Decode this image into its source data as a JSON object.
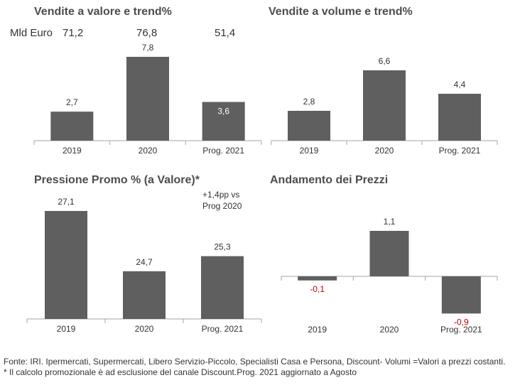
{
  "header": {
    "unit_label": "Mld Euro",
    "totals": [
      "71,2",
      "76,8",
      "51,4"
    ]
  },
  "colors": {
    "bar": "#5f5f5f",
    "negative_label": "#c00000",
    "label": "#333333",
    "axis": "#a6a6a6"
  },
  "chart_data": [
    {
      "type": "bar",
      "title": "Vendite a valore e trend%",
      "categories": [
        "2019",
        "2020",
        "Prog. 2021"
      ],
      "values": [
        2.7,
        7.8,
        3.6
      ],
      "value_labels": [
        "2,7",
        "7,8",
        "3,6"
      ],
      "ylim": [
        0,
        7.8
      ]
    },
    {
      "type": "bar",
      "title": "Vendite a volume e trend%",
      "categories": [
        "2019",
        "2020",
        "Prog. 2021"
      ],
      "values": [
        2.8,
        6.6,
        4.4
      ],
      "value_labels": [
        "2,8",
        "6,6",
        "4,4"
      ],
      "ylim": [
        0,
        6.6
      ]
    },
    {
      "type": "bar",
      "title": "Pressione Promo % (a Valore)*",
      "categories": [
        "2019",
        "2020",
        "Prog. 2021"
      ],
      "values": [
        27.1,
        24.7,
        25.3
      ],
      "value_labels": [
        "27,1",
        "24,7",
        "25,3"
      ],
      "ylim": [
        22.8,
        27.1
      ],
      "annotation": [
        "+1,4pp vs",
        "Prog 2020"
      ]
    },
    {
      "type": "bar",
      "title": "Andamento dei Prezzi",
      "categories": [
        "2019",
        "2020",
        "Prog. 2021"
      ],
      "values": [
        -0.1,
        1.1,
        -0.9
      ],
      "value_labels": [
        "-0,1",
        "1,1",
        "-0,9"
      ],
      "ylim": [
        -0.9,
        1.1
      ]
    }
  ],
  "footer": {
    "line1": "Fonte: IRI. Ipermercati, Supermercati, Libero Servizio-Piccolo, Specialisti Casa e Persona, Discount-  Volumi =Valori a prezzi costanti.",
    "line2": "* Il calcolo promozionale è ad esclusione del canale Discount.Prog. 2021 aggiornato a Agosto"
  }
}
